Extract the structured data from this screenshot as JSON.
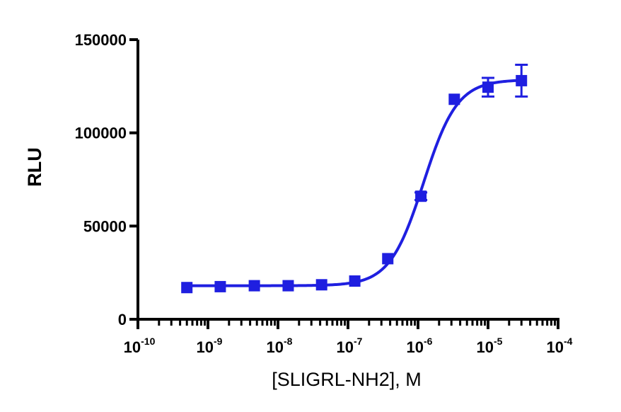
{
  "chart_data": {
    "type": "scatter",
    "xlabel": "[SLIGRL-NH2], M",
    "ylabel": "RLU",
    "x_scale": "log",
    "xlim": [
      1e-10,
      0.0001
    ],
    "ylim": [
      0,
      150000
    ],
    "x_ticks": [
      {
        "value": 1e-10,
        "base": "10",
        "exp": "-10"
      },
      {
        "value": 1e-09,
        "base": "10",
        "exp": "-9"
      },
      {
        "value": 1e-08,
        "base": "10",
        "exp": "-8"
      },
      {
        "value": 1e-07,
        "base": "10",
        "exp": "-7"
      },
      {
        "value": 1e-06,
        "base": "10",
        "exp": "-6"
      },
      {
        "value": 1e-05,
        "base": "10",
        "exp": "-5"
      },
      {
        "value": 0.0001,
        "base": "10",
        "exp": "-4"
      }
    ],
    "y_ticks": [
      {
        "value": 0,
        "label": "0"
      },
      {
        "value": 50000,
        "label": "50000"
      },
      {
        "value": 100000,
        "label": "100000"
      },
      {
        "value": 150000,
        "label": "150000"
      }
    ],
    "grid": false,
    "series": [
      {
        "color": "#1f1fe0",
        "points": [
          {
            "x": 5e-10,
            "y": 17000,
            "err": 0
          },
          {
            "x": 1.5e-09,
            "y": 17500,
            "err": 0
          },
          {
            "x": 4.6e-09,
            "y": 18000,
            "err": 0
          },
          {
            "x": 1.4e-08,
            "y": 18000,
            "err": 0
          },
          {
            "x": 4.2e-08,
            "y": 18500,
            "err": 0
          },
          {
            "x": 1.25e-07,
            "y": 20500,
            "err": 0
          },
          {
            "x": 3.7e-07,
            "y": 32500,
            "err": 0
          },
          {
            "x": 1.1e-06,
            "y": 66000,
            "err": 2000
          },
          {
            "x": 3.3e-06,
            "y": 118000,
            "err": 0
          },
          {
            "x": 1e-05,
            "y": 124500,
            "err": 5000
          },
          {
            "x": 3e-05,
            "y": 128000,
            "err": 8500
          }
        ],
        "fit": {
          "model": "sigmoidal dose-response",
          "bottom": 18000,
          "top": 128500,
          "ec50": 1.2e-06,
          "hill": 1.8
        }
      }
    ]
  }
}
